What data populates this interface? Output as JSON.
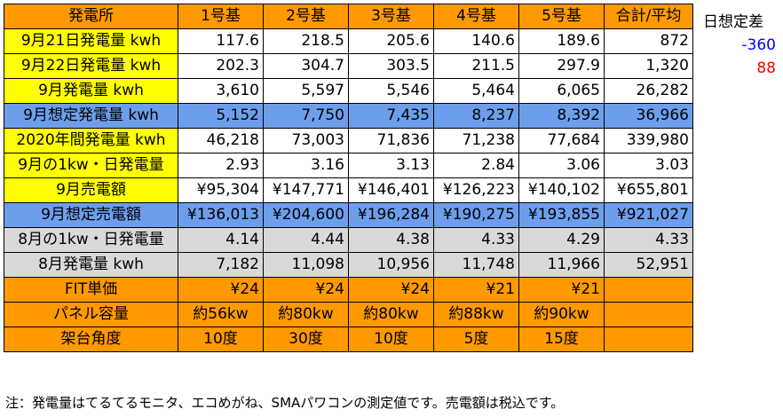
{
  "colors": {
    "orange": "#FF9900",
    "yellow": "#FFFF00",
    "blue": "#6D9EEB",
    "gray": "#D9D9D9",
    "white": "#FFFFFF",
    "neg_text": "#0000FF",
    "pos_text": "#FF0000"
  },
  "header": [
    "発電所",
    "1号基",
    "2号基",
    "3号基",
    "4号基",
    "5号基",
    "合計/平均"
  ],
  "rows": [
    {
      "label": "9月21日発電量 kwh",
      "label_bg": "yellow",
      "cell_bg": "white",
      "align": "num",
      "cells": [
        "117.6",
        "218.5",
        "205.6",
        "140.6",
        "189.6",
        "872"
      ]
    },
    {
      "label": "9月22日発電量 kwh",
      "label_bg": "yellow",
      "cell_bg": "white",
      "align": "num",
      "cells": [
        "202.3",
        "304.7",
        "303.5",
        "211.5",
        "297.9",
        "1,320"
      ]
    },
    {
      "label": "9月発電量 kwh",
      "label_bg": "yellow",
      "cell_bg": "white",
      "align": "num",
      "cells": [
        "3,610",
        "5,597",
        "5,546",
        "5,464",
        "6,065",
        "26,282"
      ]
    },
    {
      "label": "9月想定発電量 kwh",
      "label_bg": "blue",
      "cell_bg": "blue",
      "align": "num",
      "cells": [
        "5,152",
        "7,750",
        "7,435",
        "8,237",
        "8,392",
        "36,966"
      ]
    },
    {
      "label": "2020年間発電量 kwh",
      "label_bg": "yellow",
      "cell_bg": "white",
      "align": "num",
      "cells": [
        "46,218",
        "73,003",
        "71,836",
        "71,238",
        "77,684",
        "339,980"
      ]
    },
    {
      "label": "9月の1kw・日発電量",
      "label_bg": "yellow",
      "cell_bg": "white",
      "align": "num",
      "cells": [
        "2.93",
        "3.16",
        "3.13",
        "2.84",
        "3.06",
        "3.03"
      ]
    },
    {
      "label": "9月売電額",
      "label_bg": "yellow",
      "cell_bg": "white",
      "align": "num",
      "cells": [
        "¥95,304",
        "¥147,771",
        "¥146,401",
        "¥126,223",
        "¥140,102",
        "¥655,801"
      ]
    },
    {
      "label": "9月想定売電額",
      "label_bg": "blue",
      "cell_bg": "blue",
      "align": "num",
      "cells": [
        "¥136,013",
        "¥204,600",
        "¥196,284",
        "¥190,275",
        "¥193,855",
        "¥921,027"
      ]
    },
    {
      "label": "8月の1kw・日発電量",
      "label_bg": "gray",
      "cell_bg": "gray",
      "align": "num",
      "cells": [
        "4.14",
        "4.44",
        "4.38",
        "4.33",
        "4.29",
        "4.33"
      ]
    },
    {
      "label": "8月発電量 kwh",
      "label_bg": "gray",
      "cell_bg": "gray",
      "align": "num",
      "cells": [
        "7,182",
        "11,098",
        "10,956",
        "11,748",
        "11,966",
        "52,951"
      ]
    },
    {
      "label": "FIT単価",
      "label_bg": "orange",
      "cell_bg": "orange",
      "align": "num",
      "cells": [
        "¥24",
        "¥24",
        "¥24",
        "¥21",
        "¥21",
        ""
      ]
    },
    {
      "label": "パネル容量",
      "label_bg": "orange",
      "cell_bg": "orange",
      "align": "ctr",
      "cells": [
        "約56kw",
        "約80kw",
        "約80kw",
        "約88kw",
        "約90kw",
        ""
      ]
    },
    {
      "label": "架台角度",
      "label_bg": "orange",
      "cell_bg": "orange",
      "align": "ctr",
      "cells": [
        "10度",
        "30度",
        "10度",
        "5度",
        "15度",
        ""
      ]
    }
  ],
  "side": {
    "title": "日想定差",
    "values": [
      {
        "text": "-360",
        "color": "neg_text"
      },
      {
        "text": "88",
        "color": "pos_text"
      }
    ]
  },
  "note": "注：発電量はてるてるモニタ、エコめがね、SMAパワコンの測定値です。売電額は税込です。"
}
